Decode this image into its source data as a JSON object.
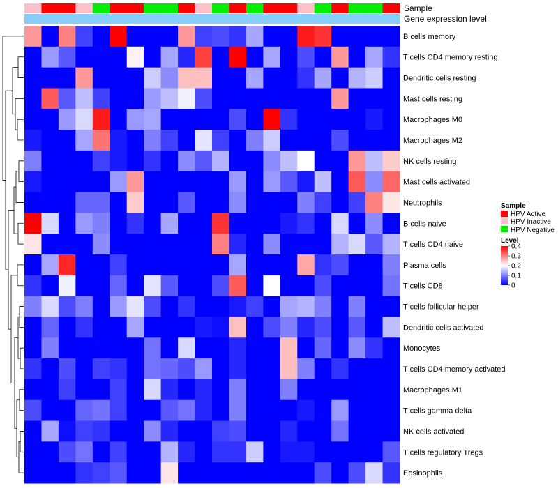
{
  "chart_data": {
    "type": "heatmap",
    "title": "",
    "annotation_rows": [
      {
        "name": "Sample",
        "values": [
          "HPV Inactive",
          "HPV Active",
          "HPV Active",
          "HPV Inactive",
          "HPV Negative",
          "HPV Active",
          "HPV Active",
          "HPV Negative",
          "HPV Negative",
          "HPV Active",
          "HPV Inactive",
          "HPV Negative",
          "HPV Active",
          "HPV Negative",
          "HPV Active",
          "HPV Active",
          "HPV Inactive",
          "HPV Negative",
          "HPV Active",
          "HPV Negative",
          "HPV Negative",
          "HPV Active"
        ]
      },
      {
        "name": "Gene expression level",
        "values_description": "light blue bar across all samples"
      }
    ],
    "rows": [
      "B cells memory",
      "T cells CD4 memory resting",
      "Dendritic cells resting",
      "Mast cells resting",
      "Macrophages M0",
      "Macrophages M2",
      "NK cells resting",
      "Mast cells activated",
      "Neutrophils",
      "B cells naive",
      "T cells CD4 naive",
      "Plasma cells",
      "T cells CD8",
      "T cells follicular helper",
      "Dendritic cells activated",
      "Monocytes",
      "T cells CD4 memory activated",
      "Macrophages M1",
      "T cells gamma delta",
      "NK cells activated",
      "T cells regulatory  Tregs",
      "Eosinophils"
    ],
    "n_columns": 22,
    "values": [
      [
        0.28,
        0.0,
        0.3,
        0.05,
        0.0,
        0.4,
        0.0,
        0.0,
        0.0,
        0.28,
        0.05,
        0.06,
        0.04,
        0.13,
        0.0,
        0.0,
        0.38,
        0.36,
        0.0,
        0.0,
        0.0,
        0.0
      ],
      [
        0.0,
        0.12,
        0.07,
        0.0,
        0.0,
        0.0,
        0.21,
        0.0,
        0.13,
        0.03,
        0.35,
        0.0,
        0.4,
        0.0,
        0.13,
        0.0,
        0.06,
        0.0,
        0.28,
        0.0,
        0.13,
        0.04
      ],
      [
        0.0,
        0.0,
        0.0,
        0.28,
        0.0,
        0.0,
        0.0,
        0.16,
        0.11,
        0.25,
        0.25,
        0.0,
        0.0,
        0.13,
        0.0,
        0.0,
        0.04,
        0.13,
        0.0,
        0.14,
        0.16,
        0.0
      ],
      [
        0.0,
        0.33,
        0.07,
        0.15,
        0.05,
        0.0,
        0.0,
        0.12,
        0.15,
        0.19,
        0.06,
        0.0,
        0.0,
        0.0,
        0.0,
        0.0,
        0.0,
        0.0,
        0.28,
        0.0,
        0.0,
        0.0
      ],
      [
        0.0,
        0.0,
        0.12,
        0.17,
        0.38,
        0.0,
        0.12,
        0.13,
        0.0,
        0.0,
        0.0,
        0.0,
        0.06,
        0.0,
        0.4,
        0.04,
        0.0,
        0.0,
        0.0,
        0.0,
        0.02,
        0.0
      ],
      [
        0.02,
        0.0,
        0.0,
        0.13,
        0.31,
        0.02,
        0.0,
        0.1,
        0.05,
        0.0,
        0.18,
        0.05,
        0.0,
        0.1,
        0.16,
        0.0,
        0.0,
        0.0,
        0.06,
        0.0,
        0.0,
        0.0
      ],
      [
        0.1,
        0.0,
        0.0,
        0.0,
        0.05,
        0.02,
        0.0,
        0.04,
        0.0,
        0.11,
        0.07,
        0.14,
        0.0,
        0.0,
        0.11,
        0.15,
        0.2,
        0.0,
        0.0,
        0.28,
        0.15,
        0.24
      ],
      [
        0.02,
        0.0,
        0.0,
        0.0,
        0.0,
        0.12,
        0.28,
        0.0,
        0.0,
        0.0,
        0.0,
        0.0,
        0.12,
        0.0,
        0.12,
        0.07,
        0.02,
        0.15,
        0.0,
        0.33,
        0.11,
        0.32
      ],
      [
        0.0,
        0.0,
        0.0,
        0.08,
        0.08,
        0.0,
        0.24,
        0.0,
        0.0,
        0.07,
        0.0,
        0.0,
        0.11,
        0.0,
        0.0,
        0.0,
        0.1,
        0.05,
        0.0,
        0.05,
        0.3,
        0.22
      ],
      [
        0.4,
        0.17,
        0.0,
        0.12,
        0.1,
        0.0,
        0.04,
        0.0,
        0.13,
        0.0,
        0.0,
        0.36,
        0.0,
        0.0,
        0.0,
        0.02,
        0.04,
        0.0,
        0.17,
        0.0,
        0.11,
        0.0
      ],
      [
        0.22,
        0.0,
        0.0,
        0.0,
        0.11,
        0.0,
        0.0,
        0.0,
        0.0,
        0.0,
        0.0,
        0.3,
        0.03,
        0.0,
        0.11,
        0.0,
        0.0,
        0.0,
        0.14,
        0.17,
        0.07,
        0.14
      ],
      [
        0.0,
        0.13,
        0.37,
        0.0,
        0.0,
        0.05,
        0.0,
        0.0,
        0.0,
        0.0,
        0.0,
        0.0,
        0.13,
        0.0,
        0.0,
        0.0,
        0.27,
        0.04,
        0.06,
        0.0,
        0.0,
        0.1
      ],
      [
        0.04,
        0.0,
        0.19,
        0.0,
        0.0,
        0.08,
        0.0,
        0.18,
        0.07,
        0.0,
        0.0,
        0.06,
        0.33,
        0.0,
        0.2,
        0.0,
        0.0,
        0.06,
        0.0,
        0.0,
        0.0,
        0.09
      ],
      [
        0.1,
        0.17,
        0.06,
        0.1,
        0.0,
        0.12,
        0.18,
        0.06,
        0.0,
        0.04,
        0.0,
        0.0,
        0.02,
        0.05,
        0.0,
        0.13,
        0.14,
        0.1,
        0.0,
        0.1,
        0.0,
        0.0
      ],
      [
        0.0,
        0.08,
        0.0,
        0.04,
        0.0,
        0.0,
        0.13,
        0.0,
        0.0,
        0.0,
        0.02,
        0.01,
        0.25,
        0.0,
        0.06,
        0.1,
        0.03,
        0.06,
        0.0,
        0.07,
        0.0,
        0.15
      ],
      [
        0.0,
        0.1,
        0.0,
        0.0,
        0.0,
        0.0,
        0.0,
        0.09,
        0.0,
        0.17,
        0.0,
        0.0,
        0.03,
        0.0,
        0.0,
        0.25,
        0.0,
        0.08,
        0.0,
        0.11,
        0.04,
        0.0
      ],
      [
        0.04,
        0.0,
        0.06,
        0.0,
        0.05,
        0.04,
        0.0,
        0.09,
        0.08,
        0.06,
        0.12,
        0.0,
        0.03,
        0.0,
        0.0,
        0.25,
        0.1,
        0.0,
        0.04,
        0.0,
        0.0,
        0.0
      ],
      [
        0.0,
        0.0,
        0.05,
        0.0,
        0.0,
        0.05,
        0.0,
        0.17,
        0.03,
        0.0,
        0.03,
        0.0,
        0.1,
        0.0,
        0.0,
        0.1,
        0.0,
        0.0,
        0.0,
        0.0,
        0.0,
        0.0
      ],
      [
        0.06,
        0.0,
        0.0,
        0.08,
        0.09,
        0.05,
        0.0,
        0.0,
        0.07,
        0.09,
        0.03,
        0.0,
        0.1,
        0.0,
        0.0,
        0.0,
        0.02,
        0.0,
        0.12,
        0.0,
        0.0,
        0.0
      ],
      [
        0.0,
        0.13,
        0.01,
        0.05,
        0.04,
        0.0,
        0.0,
        0.11,
        0.03,
        0.0,
        0.0,
        0.05,
        0.06,
        0.0,
        0.0,
        0.03,
        0.0,
        0.0,
        0.09,
        0.0,
        0.0,
        0.0
      ],
      [
        0.0,
        0.0,
        0.06,
        0.09,
        0.0,
        0.05,
        0.0,
        0.0,
        0.14,
        0.03,
        0.0,
        0.04,
        0.04,
        0.16,
        0.0,
        0.02,
        0.02,
        0.0,
        0.0,
        0.0,
        0.0,
        0.07
      ],
      [
        0.0,
        0.0,
        0.0,
        0.04,
        0.05,
        0.07,
        0.0,
        0.0,
        0.22,
        0.0,
        0.0,
        0.0,
        0.0,
        0.0,
        0.0,
        0.0,
        0.0,
        0.06,
        0.0,
        0.06,
        0.17,
        0.04
      ]
    ],
    "color_scale": {
      "min": 0,
      "mid": 0.2,
      "max": 0.4,
      "low_color": "#0000ff",
      "mid_color": "#ffffff",
      "high_color": "#ff0000"
    },
    "gene_expression_color": "#87cefa",
    "legends": {
      "sample": {
        "title": "Sample",
        "entries": [
          {
            "label": "HPV Active",
            "color": "#ff0000"
          },
          {
            "label": "HPV Inactive",
            "color": "#ffc0cb"
          },
          {
            "label": "HPV Negative",
            "color": "#00ee00"
          }
        ]
      },
      "level": {
        "title": "Level",
        "ticks": [
          "0.4",
          "0.3",
          "0.2",
          "0.1",
          "0"
        ],
        "tick_values": [
          0.4,
          0.3,
          0.2,
          0.1,
          0
        ]
      }
    }
  }
}
